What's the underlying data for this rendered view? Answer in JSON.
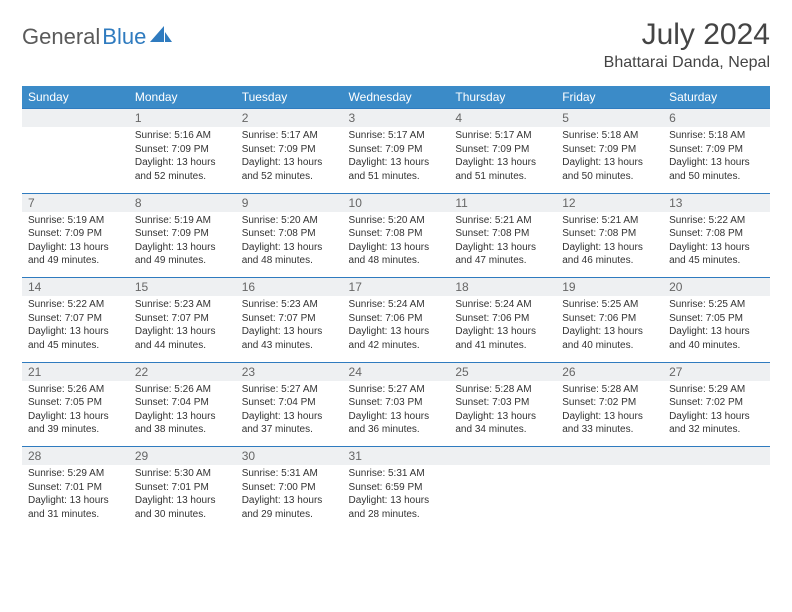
{
  "brand": {
    "part1": "General",
    "part2": "Blue"
  },
  "title": "July 2024",
  "location": "Bhattarai Danda, Nepal",
  "colors": {
    "header_bg": "#3b8bc8",
    "header_text": "#ffffff",
    "daynum_bg": "#eef0f2",
    "daynum_text": "#666666",
    "body_text": "#333333",
    "rule": "#2f7bbf",
    "logo_gray": "#5a5a5a",
    "logo_blue": "#2f7bbf"
  },
  "weekdays": [
    "Sunday",
    "Monday",
    "Tuesday",
    "Wednesday",
    "Thursday",
    "Friday",
    "Saturday"
  ],
  "weeks": [
    [
      {
        "day": "",
        "lines": []
      },
      {
        "day": "1",
        "lines": [
          "Sunrise: 5:16 AM",
          "Sunset: 7:09 PM",
          "Daylight: 13 hours and 52 minutes."
        ]
      },
      {
        "day": "2",
        "lines": [
          "Sunrise: 5:17 AM",
          "Sunset: 7:09 PM",
          "Daylight: 13 hours and 52 minutes."
        ]
      },
      {
        "day": "3",
        "lines": [
          "Sunrise: 5:17 AM",
          "Sunset: 7:09 PM",
          "Daylight: 13 hours and 51 minutes."
        ]
      },
      {
        "day": "4",
        "lines": [
          "Sunrise: 5:17 AM",
          "Sunset: 7:09 PM",
          "Daylight: 13 hours and 51 minutes."
        ]
      },
      {
        "day": "5",
        "lines": [
          "Sunrise: 5:18 AM",
          "Sunset: 7:09 PM",
          "Daylight: 13 hours and 50 minutes."
        ]
      },
      {
        "day": "6",
        "lines": [
          "Sunrise: 5:18 AM",
          "Sunset: 7:09 PM",
          "Daylight: 13 hours and 50 minutes."
        ]
      }
    ],
    [
      {
        "day": "7",
        "lines": [
          "Sunrise: 5:19 AM",
          "Sunset: 7:09 PM",
          "Daylight: 13 hours and 49 minutes."
        ]
      },
      {
        "day": "8",
        "lines": [
          "Sunrise: 5:19 AM",
          "Sunset: 7:09 PM",
          "Daylight: 13 hours and 49 minutes."
        ]
      },
      {
        "day": "9",
        "lines": [
          "Sunrise: 5:20 AM",
          "Sunset: 7:08 PM",
          "Daylight: 13 hours and 48 minutes."
        ]
      },
      {
        "day": "10",
        "lines": [
          "Sunrise: 5:20 AM",
          "Sunset: 7:08 PM",
          "Daylight: 13 hours and 48 minutes."
        ]
      },
      {
        "day": "11",
        "lines": [
          "Sunrise: 5:21 AM",
          "Sunset: 7:08 PM",
          "Daylight: 13 hours and 47 minutes."
        ]
      },
      {
        "day": "12",
        "lines": [
          "Sunrise: 5:21 AM",
          "Sunset: 7:08 PM",
          "Daylight: 13 hours and 46 minutes."
        ]
      },
      {
        "day": "13",
        "lines": [
          "Sunrise: 5:22 AM",
          "Sunset: 7:08 PM",
          "Daylight: 13 hours and 45 minutes."
        ]
      }
    ],
    [
      {
        "day": "14",
        "lines": [
          "Sunrise: 5:22 AM",
          "Sunset: 7:07 PM",
          "Daylight: 13 hours and 45 minutes."
        ]
      },
      {
        "day": "15",
        "lines": [
          "Sunrise: 5:23 AM",
          "Sunset: 7:07 PM",
          "Daylight: 13 hours and 44 minutes."
        ]
      },
      {
        "day": "16",
        "lines": [
          "Sunrise: 5:23 AM",
          "Sunset: 7:07 PM",
          "Daylight: 13 hours and 43 minutes."
        ]
      },
      {
        "day": "17",
        "lines": [
          "Sunrise: 5:24 AM",
          "Sunset: 7:06 PM",
          "Daylight: 13 hours and 42 minutes."
        ]
      },
      {
        "day": "18",
        "lines": [
          "Sunrise: 5:24 AM",
          "Sunset: 7:06 PM",
          "Daylight: 13 hours and 41 minutes."
        ]
      },
      {
        "day": "19",
        "lines": [
          "Sunrise: 5:25 AM",
          "Sunset: 7:06 PM",
          "Daylight: 13 hours and 40 minutes."
        ]
      },
      {
        "day": "20",
        "lines": [
          "Sunrise: 5:25 AM",
          "Sunset: 7:05 PM",
          "Daylight: 13 hours and 40 minutes."
        ]
      }
    ],
    [
      {
        "day": "21",
        "lines": [
          "Sunrise: 5:26 AM",
          "Sunset: 7:05 PM",
          "Daylight: 13 hours and 39 minutes."
        ]
      },
      {
        "day": "22",
        "lines": [
          "Sunrise: 5:26 AM",
          "Sunset: 7:04 PM",
          "Daylight: 13 hours and 38 minutes."
        ]
      },
      {
        "day": "23",
        "lines": [
          "Sunrise: 5:27 AM",
          "Sunset: 7:04 PM",
          "Daylight: 13 hours and 37 minutes."
        ]
      },
      {
        "day": "24",
        "lines": [
          "Sunrise: 5:27 AM",
          "Sunset: 7:03 PM",
          "Daylight: 13 hours and 36 minutes."
        ]
      },
      {
        "day": "25",
        "lines": [
          "Sunrise: 5:28 AM",
          "Sunset: 7:03 PM",
          "Daylight: 13 hours and 34 minutes."
        ]
      },
      {
        "day": "26",
        "lines": [
          "Sunrise: 5:28 AM",
          "Sunset: 7:02 PM",
          "Daylight: 13 hours and 33 minutes."
        ]
      },
      {
        "day": "27",
        "lines": [
          "Sunrise: 5:29 AM",
          "Sunset: 7:02 PM",
          "Daylight: 13 hours and 32 minutes."
        ]
      }
    ],
    [
      {
        "day": "28",
        "lines": [
          "Sunrise: 5:29 AM",
          "Sunset: 7:01 PM",
          "Daylight: 13 hours and 31 minutes."
        ]
      },
      {
        "day": "29",
        "lines": [
          "Sunrise: 5:30 AM",
          "Sunset: 7:01 PM",
          "Daylight: 13 hours and 30 minutes."
        ]
      },
      {
        "day": "30",
        "lines": [
          "Sunrise: 5:31 AM",
          "Sunset: 7:00 PM",
          "Daylight: 13 hours and 29 minutes."
        ]
      },
      {
        "day": "31",
        "lines": [
          "Sunrise: 5:31 AM",
          "Sunset: 6:59 PM",
          "Daylight: 13 hours and 28 minutes."
        ]
      },
      {
        "day": "",
        "lines": []
      },
      {
        "day": "",
        "lines": []
      },
      {
        "day": "",
        "lines": []
      }
    ]
  ]
}
